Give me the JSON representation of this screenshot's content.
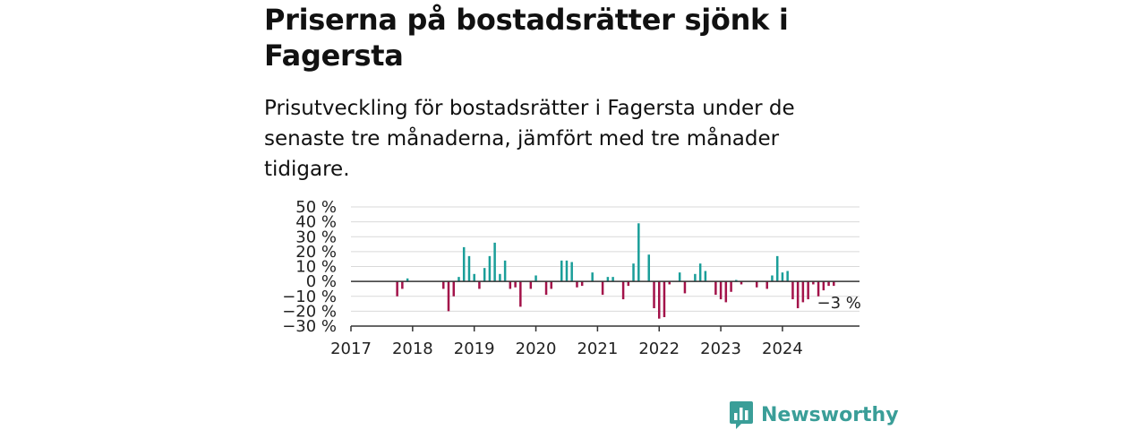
{
  "header": {
    "title": "Priserna på bostadsrätter sjönk i Fagersta",
    "subtitle": "Prisutveckling för bostadsrätter i Fagersta under de senaste tre månaderna, jämfört med tre månader tidigare."
  },
  "chart_data": {
    "type": "bar",
    "title": "Priserna på bostadsrätter sjönk i Fagersta",
    "subtitle": "Prisutveckling för bostadsrätter i Fagersta under de senaste tre månaderna, jämfört med tre månader tidigare.",
    "xlabel": "",
    "ylabel": "",
    "ylim": [
      -30,
      50
    ],
    "yticks": [
      50,
      40,
      30,
      20,
      10,
      0,
      -10,
      -20,
      -30
    ],
    "ytick_labels": [
      "50 %",
      "40 %",
      "30 %",
      "20 %",
      "10 %",
      "0 %",
      "−10 %",
      "−20 %",
      "−30 %"
    ],
    "xlim": [
      2017.0,
      2025.25
    ],
    "xtick_labels": [
      "2017",
      "2018",
      "2019",
      "2020",
      "2021",
      "2022",
      "2023",
      "2024"
    ],
    "grid": true,
    "colors": {
      "positive": "#1a9e99",
      "negative": "#a3134a",
      "zero_line": "#333333",
      "grid": "#d9d9d9"
    },
    "annotation": {
      "text": "−3 %",
      "x": 2024.875,
      "y": -3
    },
    "x": [
      2017.75,
      2017.833,
      2017.917,
      2018.5,
      2018.583,
      2018.667,
      2018.75,
      2018.833,
      2018.917,
      2019.0,
      2019.083,
      2019.167,
      2019.25,
      2019.333,
      2019.417,
      2019.5,
      2019.583,
      2019.667,
      2019.75,
      2019.917,
      2020.0,
      2020.167,
      2020.25,
      2020.417,
      2020.5,
      2020.583,
      2020.667,
      2020.75,
      2020.917,
      2021.083,
      2021.167,
      2021.25,
      2021.417,
      2021.5,
      2021.583,
      2021.667,
      2021.833,
      2021.917,
      2022.0,
      2022.083,
      2022.167,
      2022.333,
      2022.417,
      2022.583,
      2022.667,
      2022.75,
      2022.917,
      2023.0,
      2023.083,
      2023.167,
      2023.25,
      2023.333,
      2023.583,
      2023.75,
      2023.833,
      2023.917,
      2024.0,
      2024.083,
      2024.167,
      2024.25,
      2024.333,
      2024.417,
      2024.5,
      2024.583,
      2024.667,
      2024.75,
      2024.833,
      2024.917
    ],
    "values": [
      -10,
      -5,
      2,
      -5,
      -20,
      -10,
      3,
      23,
      17,
      5,
      -5,
      9,
      17,
      26,
      5,
      14,
      -5,
      -4,
      -17,
      -5,
      4,
      -9,
      -5,
      14,
      14,
      13,
      -4,
      -3,
      6,
      -9,
      3,
      3,
      -12,
      -3,
      12,
      39,
      18,
      -18,
      -25,
      -24,
      -2,
      6,
      -8,
      5,
      12,
      7,
      -9,
      -12,
      -14,
      -7,
      1,
      -2,
      -4,
      -5,
      4,
      17,
      6,
      7,
      -12,
      -18,
      -14,
      -12,
      -2,
      -10,
      -6,
      -3,
      -3,
      0
    ]
  },
  "brand": {
    "name": "Newsworthy",
    "color": "#3a9e98"
  }
}
